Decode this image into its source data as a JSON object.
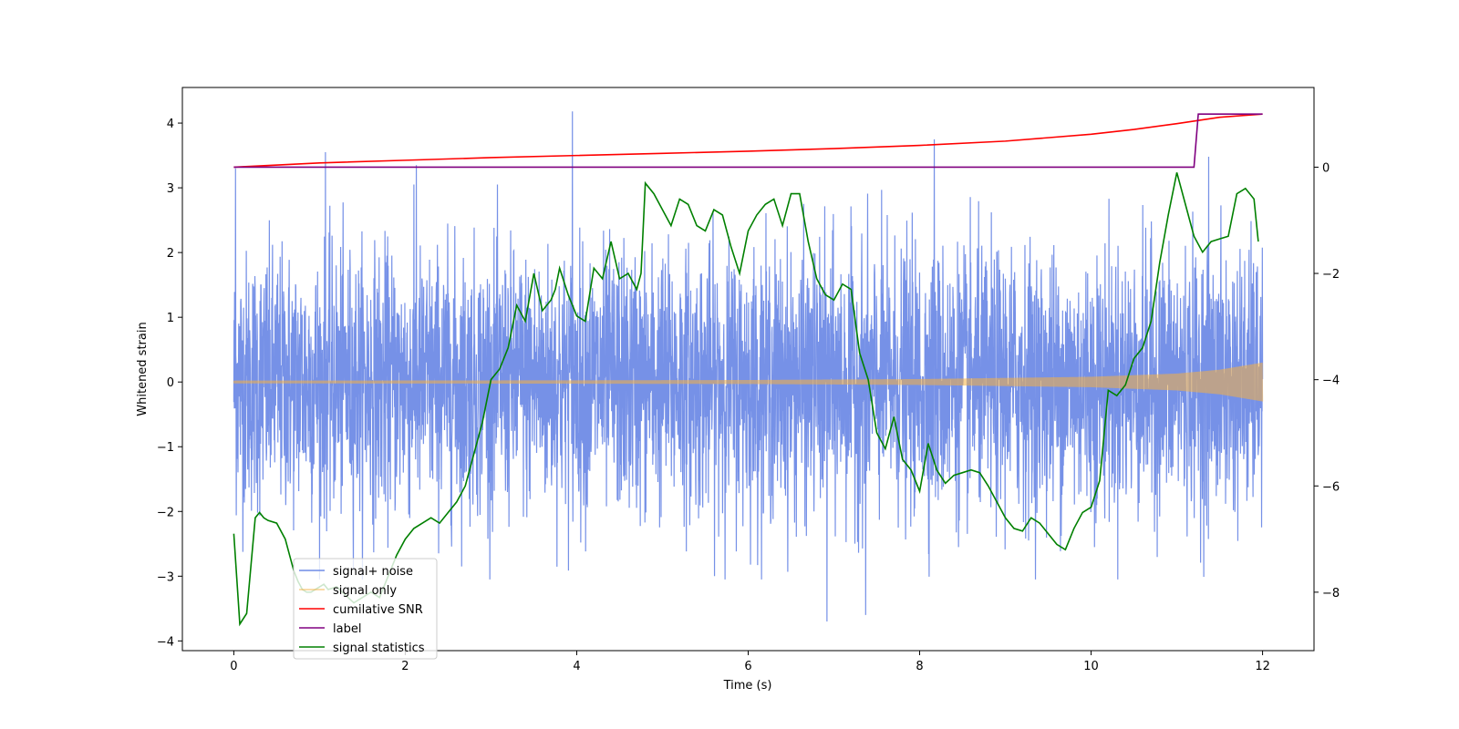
{
  "chart_data": {
    "type": "line",
    "title": "",
    "xlabel": "Time (s)",
    "ylabel": "Whitened strain",
    "y2label": "",
    "xlim": [
      -0.6,
      12.6
    ],
    "ylim": [
      -4.15,
      4.55
    ],
    "y2lim": [
      -9.1,
      1.5
    ],
    "x_ticks": [
      0,
      2,
      4,
      6,
      8,
      10,
      12
    ],
    "x_tick_labels": [
      "0",
      "2",
      "4",
      "6",
      "8",
      "10",
      "12"
    ],
    "y_ticks": [
      4,
      3,
      2,
      1,
      0,
      -1,
      -2,
      -3,
      -4
    ],
    "y_tick_labels": [
      "4",
      "3",
      "2",
      "1",
      "0",
      "−1",
      "−2",
      "−3",
      "−4"
    ],
    "y2_ticks": [
      0,
      -2,
      -4,
      -6,
      -8
    ],
    "y2_tick_labels": [
      "0",
      "−2",
      "−4",
      "−6",
      "−8"
    ],
    "legend_position": "lower-left",
    "series": [
      {
        "name": "signal+ noise",
        "axis": "left",
        "color": "#6f8be6",
        "kind": "noise",
        "duration": 12,
        "sigma": 1.0,
        "spikes": [
          {
            "x": 0.02,
            "y": 3.3
          },
          {
            "x": 1.07,
            "y": 3.55
          },
          {
            "x": 2.13,
            "y": 3.35
          },
          {
            "x": 3.95,
            "y": 4.18
          },
          {
            "x": 6.92,
            "y": -3.7
          },
          {
            "x": 7.37,
            "y": -3.6
          },
          {
            "x": 8.17,
            "y": 3.75
          },
          {
            "x": 11.37,
            "y": 3.48
          }
        ]
      },
      {
        "name": "signal only",
        "axis": "left",
        "color": "#f5b041",
        "kind": "chirp",
        "x": [
          0,
          2,
          4,
          6,
          8,
          10,
          11,
          11.5,
          12
        ],
        "amplitude": [
          0.02,
          0.022,
          0.025,
          0.03,
          0.045,
          0.08,
          0.13,
          0.19,
          0.3
        ]
      },
      {
        "name": "cumilative SNR",
        "axis": "right",
        "color": "#ff0000",
        "x": [
          0,
          1,
          2,
          3,
          4,
          5,
          6,
          7,
          8,
          9,
          10,
          10.5,
          11,
          11.5,
          12
        ],
        "y": [
          0,
          0.08,
          0.13,
          0.18,
          0.22,
          0.26,
          0.3,
          0.35,
          0.41,
          0.49,
          0.62,
          0.71,
          0.82,
          0.94,
          1.0
        ]
      },
      {
        "name": "label",
        "axis": "right",
        "color": "#800080",
        "x": [
          0,
          11.2,
          11.25,
          12
        ],
        "y": [
          0,
          0,
          1,
          1
        ]
      },
      {
        "name": "signal statistics",
        "axis": "right",
        "color": "#008000",
        "x": [
          0,
          0.07,
          0.15,
          0.2,
          0.25,
          0.3,
          0.35,
          0.4,
          0.5,
          0.6,
          0.65,
          0.7,
          0.75,
          0.8,
          0.85,
          0.9,
          0.95,
          1.0,
          1.05,
          1.1,
          1.2,
          1.3,
          1.4,
          1.5,
          1.6,
          1.7,
          1.8,
          1.9,
          2.0,
          2.1,
          2.2,
          2.3,
          2.4,
          2.5,
          2.6,
          2.7,
          2.8,
          2.9,
          3.0,
          3.1,
          3.2,
          3.3,
          3.4,
          3.5,
          3.6,
          3.7,
          3.75,
          3.8,
          3.9,
          4.0,
          4.1,
          4.2,
          4.3,
          4.4,
          4.5,
          4.6,
          4.7,
          4.75,
          4.8,
          4.9,
          5.0,
          5.1,
          5.2,
          5.3,
          5.4,
          5.5,
          5.6,
          5.7,
          5.8,
          5.9,
          6.0,
          6.1,
          6.2,
          6.3,
          6.4,
          6.5,
          6.6,
          6.7,
          6.8,
          6.9,
          7.0,
          7.1,
          7.2,
          7.3,
          7.4,
          7.5,
          7.6,
          7.7,
          7.8,
          7.9,
          8.0,
          8.1,
          8.2,
          8.3,
          8.4,
          8.5,
          8.6,
          8.7,
          8.8,
          8.9,
          9.0,
          9.1,
          9.2,
          9.3,
          9.4,
          9.5,
          9.6,
          9.7,
          9.8,
          9.9,
          10.0,
          10.1,
          10.2,
          10.3,
          10.4,
          10.5,
          10.6,
          10.7,
          10.8,
          10.9,
          11.0,
          11.1,
          11.2,
          11.3,
          11.4,
          11.5,
          11.6,
          11.7,
          11.8,
          11.9,
          11.95
        ],
        "y": [
          -6.9,
          -8.6,
          -8.4,
          -7.5,
          -6.6,
          -6.5,
          -6.6,
          -6.65,
          -6.7,
          -7.0,
          -7.3,
          -7.6,
          -7.8,
          -7.95,
          -8.0,
          -8.0,
          -7.95,
          -7.9,
          -7.85,
          -7.95,
          -7.9,
          -8.05,
          -8.2,
          -8.1,
          -8.0,
          -8.1,
          -7.7,
          -7.3,
          -7.0,
          -6.8,
          -6.7,
          -6.6,
          -6.7,
          -6.5,
          -6.3,
          -6.0,
          -5.4,
          -4.8,
          -4.0,
          -3.8,
          -3.4,
          -2.6,
          -2.9,
          -2.0,
          -2.7,
          -2.5,
          -2.3,
          -1.9,
          -2.4,
          -2.8,
          -2.9,
          -1.9,
          -2.1,
          -1.4,
          -2.1,
          -2.0,
          -2.3,
          -2.0,
          -0.3,
          -0.5,
          -0.8,
          -1.1,
          -0.6,
          -0.7,
          -1.1,
          -1.2,
          -0.8,
          -0.9,
          -1.5,
          -2.0,
          -1.2,
          -0.9,
          -0.7,
          -0.6,
          -1.1,
          -0.5,
          -0.5,
          -1.4,
          -2.1,
          -2.4,
          -2.5,
          -2.2,
          -2.3,
          -3.5,
          -4.0,
          -5.0,
          -5.3,
          -4.7,
          -5.5,
          -5.7,
          -6.1,
          -5.2,
          -5.7,
          -5.95,
          -5.8,
          -5.75,
          -5.7,
          -5.75,
          -6.0,
          -6.3,
          -6.6,
          -6.8,
          -6.85,
          -6.6,
          -6.7,
          -6.9,
          -7.1,
          -7.2,
          -6.8,
          -6.5,
          -6.4,
          -5.9,
          -4.2,
          -4.3,
          -4.1,
          -3.6,
          -3.4,
          -2.9,
          -1.8,
          -0.9,
          -0.1,
          -0.7,
          -1.3,
          -1.6,
          -1.4,
          -1.35,
          -1.3,
          -0.5,
          -0.4,
          -0.6,
          -1.4
        ]
      }
    ]
  }
}
